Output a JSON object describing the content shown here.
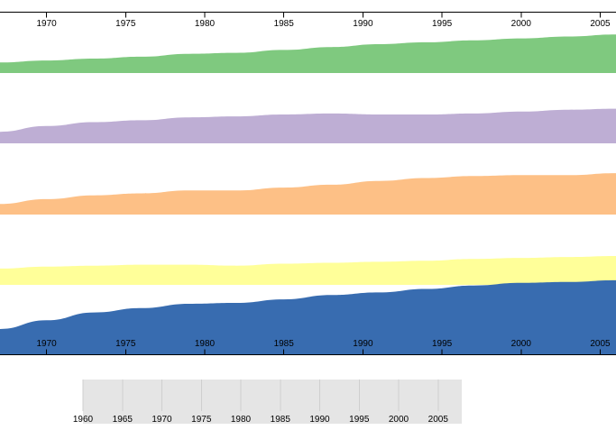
{
  "chart_data": {
    "type": "area",
    "layout": "small-multiples",
    "xlim": [
      1967,
      2006
    ],
    "x": [
      1967,
      1970,
      1973,
      1976,
      1979,
      1982,
      1985,
      1988,
      1991,
      1994,
      1997,
      2000,
      2003,
      2006
    ],
    "series": [
      {
        "color": "#7fc97f",
        "ylim": [
          0,
          45
        ],
        "values": [
          11,
          13,
          15,
          17,
          20,
          21,
          24,
          27,
          30,
          32,
          34,
          36,
          38,
          40
        ]
      },
      {
        "color": "#beaed4",
        "ylim": [
          0,
          45
        ],
        "values": [
          12,
          18,
          22,
          24,
          27,
          28,
          30,
          31,
          30,
          30,
          31,
          33,
          35,
          36
        ]
      },
      {
        "color": "#fdc086",
        "ylim": [
          0,
          45
        ],
        "values": [
          11,
          16,
          20,
          22,
          25,
          25,
          28,
          31,
          35,
          38,
          40,
          41,
          41,
          43
        ]
      },
      {
        "color": "#ffff99",
        "ylim": [
          0,
          45
        ],
        "values": [
          17,
          19,
          20,
          21,
          21,
          20,
          22,
          23,
          24,
          25,
          27,
          28,
          29,
          30
        ]
      },
      {
        "color": "#386cb0",
        "ylim": [
          0,
          90
        ],
        "values": [
          30,
          40,
          49,
          54,
          59,
          60,
          64,
          69,
          72,
          76,
          80,
          83,
          84,
          86
        ]
      }
    ],
    "top_axis_ticks": [
      "1970",
      "1975",
      "1980",
      "1985",
      "1990",
      "1995",
      "2000",
      "2005"
    ],
    "bottom_axis_ticks": [
      "1970",
      "1975",
      "1980",
      "1985",
      "1990",
      "1995",
      "2000",
      "2005"
    ],
    "context": {
      "xlim": [
        1960,
        2008
      ],
      "ticks": [
        "1960",
        "1965",
        "1970",
        "1975",
        "1980",
        "1985",
        "1990",
        "1995",
        "2000",
        "2005"
      ]
    }
  }
}
